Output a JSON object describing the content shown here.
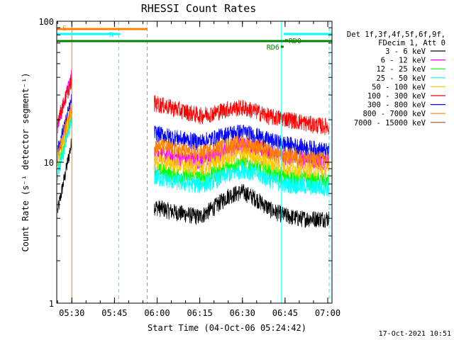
{
  "footer_timestamp": "17-Oct-2021 10:51",
  "colors": {
    "axes": "#000000",
    "attenuator_bar": "#ff8000",
    "eclipse_bar": "#00ffff",
    "saa_bar": "#008000",
    "marker_cyan": "#00ffff",
    "marker_orange": "#ff8000"
  },
  "chart_data": {
    "type": "line",
    "title": "RHESSI Count Rates",
    "xlabel": "Start Time (04-Oct-06 05:24:42)",
    "ylabel": "Count Rate (s⁻¹ detector segment⁻¹)",
    "y_scale": "log",
    "ylim": [
      1,
      100
    ],
    "xlim": [
      "05:24:42",
      "07:01:30"
    ],
    "x_ticks": [
      "05:30",
      "05:45",
      "06:00",
      "06:15",
      "06:30",
      "06:45",
      "07:00"
    ],
    "y_ticks": [
      "1",
      "10",
      "100"
    ],
    "grid": false,
    "legend_position": "right",
    "legend_header": [
      "Det 1f,3f,4f,5f,6f,9f,",
      "FDecim 1, Att 0"
    ],
    "series": [
      {
        "name": "3 - 6 keV",
        "color": "#000000",
        "x": [
          "05:25",
          "05:30",
          "05:57",
          "06:05",
          "06:10",
          "06:15",
          "06:20",
          "06:25",
          "06:30",
          "06:35",
          "06:40",
          "06:45",
          "06:50",
          "06:55",
          "07:00"
        ],
        "values": [
          4.5,
          14,
          5.0,
          4.5,
          4.3,
          4.1,
          4.8,
          5.8,
          6.2,
          5.5,
          4.6,
          4.2,
          4.0,
          4.0,
          4.0
        ]
      },
      {
        "name": "6 - 12 keV",
        "color": "#ff00ff",
        "x": [
          "05:25",
          "05:30",
          "05:57",
          "06:05",
          "06:10",
          "06:15",
          "06:20",
          "06:25",
          "06:30",
          "06:35",
          "06:40",
          "06:45",
          "06:50",
          "06:55",
          "07:00"
        ],
        "values": [
          18,
          42,
          12.0,
          11.0,
          10.6,
          10.3,
          11.0,
          12.5,
          13.5,
          12.8,
          11.5,
          10.8,
          10.5,
          10.3,
          10.0
        ]
      },
      {
        "name": "12 - 25 keV",
        "color": "#00ff00",
        "x": [
          "05:25",
          "05:30",
          "05:57",
          "06:05",
          "06:10",
          "06:15",
          "06:20",
          "06:25",
          "06:30",
          "06:35",
          "06:40",
          "06:45",
          "06:50",
          "06:55",
          "07:00"
        ],
        "values": [
          9,
          22,
          9.0,
          8.3,
          8.0,
          7.7,
          8.3,
          9.3,
          10.0,
          9.4,
          8.4,
          7.9,
          7.7,
          7.5,
          7.4
        ]
      },
      {
        "name": "25 - 50 keV",
        "color": "#00ffff",
        "x": [
          "05:25",
          "05:30",
          "05:57",
          "06:05",
          "06:10",
          "06:15",
          "06:20",
          "06:25",
          "06:30",
          "06:35",
          "06:40",
          "06:45",
          "06:50",
          "06:55",
          "07:00"
        ],
        "values": [
          8,
          20,
          8.0,
          7.4,
          7.1,
          6.9,
          7.4,
          8.2,
          8.9,
          8.3,
          7.5,
          7.0,
          6.8,
          6.7,
          6.6
        ]
      },
      {
        "name": "50 - 100 keV",
        "color": "#ffc800",
        "x": [
          "05:25",
          "05:30",
          "05:57",
          "06:05",
          "06:10",
          "06:15",
          "06:20",
          "06:25",
          "06:30",
          "06:35",
          "06:40",
          "06:45",
          "06:50",
          "06:55",
          "07:00"
        ],
        "values": [
          10,
          24,
          10.5,
          9.8,
          9.4,
          9.1,
          9.8,
          10.8,
          11.6,
          11.0,
          9.9,
          9.3,
          9.0,
          8.9,
          8.8
        ]
      },
      {
        "name": "100 - 300 keV",
        "color": "#ff0000",
        "x": [
          "05:25",
          "05:30",
          "05:57",
          "06:05",
          "06:10",
          "06:15",
          "06:20",
          "06:25",
          "06:30",
          "06:35",
          "06:40",
          "06:45",
          "06:50",
          "06:55",
          "07:00"
        ],
        "values": [
          20,
          38,
          27.0,
          24.5,
          23.0,
          21.5,
          22.5,
          24.0,
          24.5,
          23.0,
          21.0,
          20.5,
          19.5,
          18.5,
          18.0
        ]
      },
      {
        "name": "300 - 800 keV",
        "color": "#0000ff",
        "x": [
          "05:25",
          "05:30",
          "05:57",
          "06:05",
          "06:10",
          "06:15",
          "06:20",
          "06:25",
          "06:30",
          "06:35",
          "06:40",
          "06:45",
          "06:50",
          "06:55",
          "07:00"
        ],
        "values": [
          12,
          28,
          16.5,
          15.2,
          14.5,
          14.0,
          14.8,
          16.0,
          16.5,
          15.5,
          14.2,
          13.5,
          13.0,
          12.5,
          12.0
        ]
      },
      {
        "name": "800 - 7000 keV",
        "color": "#ff8000",
        "x": [
          "05:25",
          "05:30",
          "05:57",
          "06:05",
          "06:10",
          "06:15",
          "06:20",
          "06:25",
          "06:30",
          "06:35",
          "06:40",
          "06:45",
          "06:50",
          "06:55",
          "07:00"
        ],
        "values": [
          11,
          26,
          13.5,
          12.5,
          12.0,
          11.6,
          12.3,
          13.3,
          13.8,
          13.0,
          11.9,
          11.2,
          10.9,
          10.6,
          10.4
        ]
      },
      {
        "name": "7000 - 15000 keV",
        "color": "#a0522d",
        "x": [],
        "values": []
      }
    ],
    "state_bars": [
      {
        "label": "S",
        "color": "#ff8000",
        "from": "05:24:42",
        "to": "05:56:30",
        "level": "top"
      },
      {
        "label": "N",
        "color": "#00ffff",
        "from": "05:24:42",
        "to": "05:47:00",
        "level": "upper"
      },
      {
        "label": "",
        "color": "#00ffff",
        "from": "06:44:30",
        "to": "07:01:30",
        "level": "upper"
      },
      {
        "label": "",
        "color": "#008000",
        "from": "05:24:42",
        "to": "07:01:30",
        "level": "middle"
      },
      {
        "label": "RD0",
        "color": "#008000",
        "from": "06:45:00",
        "to": "06:45:30",
        "level": "rd0"
      },
      {
        "label": "RD6",
        "color": "#008000",
        "from": "06:43:30",
        "to": "06:44:30",
        "level": "rd6"
      }
    ],
    "markers": [
      {
        "time": "05:30:00",
        "color": "#ff8000",
        "style": "solid"
      },
      {
        "time": "05:46:30",
        "color": "#00ffff",
        "style": "dashed"
      },
      {
        "time": "05:56:30",
        "color": "#ff8000",
        "style": "dashed"
      },
      {
        "time": "06:43:45",
        "color": "#00ffff",
        "style": "solid"
      },
      {
        "time": "07:00:30",
        "color": "#00ffff",
        "style": "dashed"
      }
    ]
  }
}
